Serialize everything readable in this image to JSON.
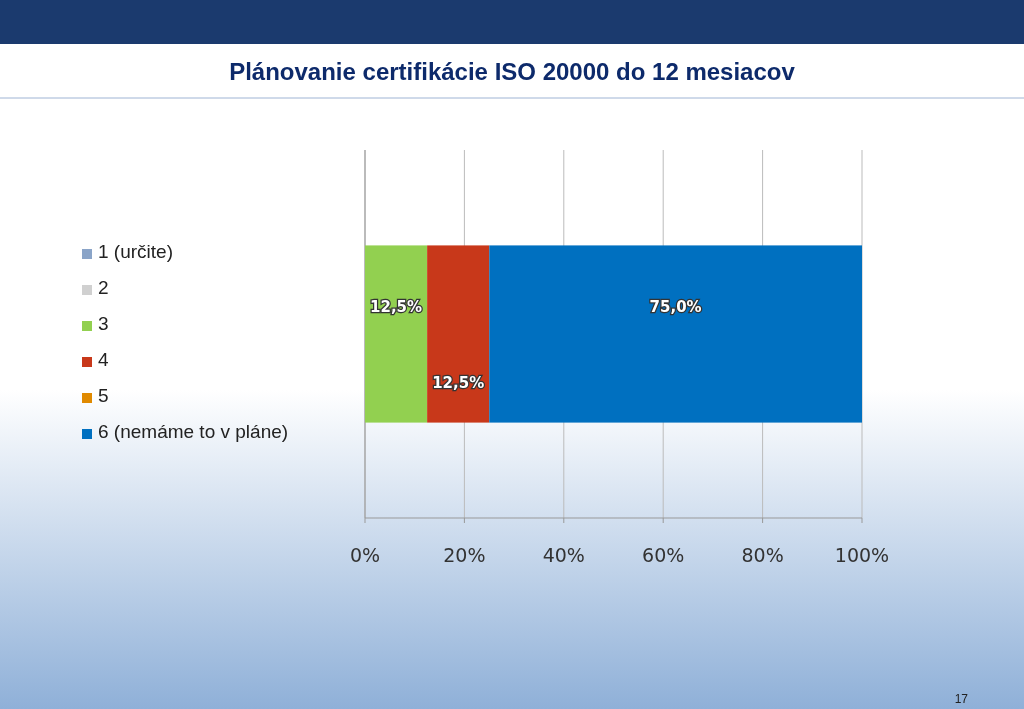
{
  "chart_data": {
    "type": "bar",
    "title": "Plánovanie certifikácie ISO 20000 do 12 mesiacov",
    "orientation": "horizontal",
    "stacked": true,
    "categories": [
      null
    ],
    "series": [
      {
        "name": "1 (určite)",
        "color": "#8aa4c8",
        "values": [
          0
        ],
        "value_labels": [
          null
        ]
      },
      {
        "name": "2",
        "color": "#d0d0d0",
        "values": [
          0
        ],
        "value_labels": [
          null
        ]
      },
      {
        "name": "3",
        "color": "#92d050",
        "values": [
          12.5
        ],
        "value_labels": [
          "12,5%"
        ]
      },
      {
        "name": "4",
        "color": "#c8381a",
        "values": [
          12.5
        ],
        "value_labels": [
          "12,5%"
        ]
      },
      {
        "name": "5",
        "color": "#e08a00",
        "values": [
          0
        ],
        "value_labels": [
          null
        ]
      },
      {
        "name": "6 (nemáme to v pláne)",
        "color": "#0070c0",
        "values": [
          75
        ],
        "value_labels": [
          "75,0%"
        ]
      }
    ],
    "xlim": [
      0,
      100
    ],
    "xticks": [
      {
        "value": 0,
        "label": "0%"
      },
      {
        "value": 20,
        "label": "20%"
      },
      {
        "value": 40,
        "label": "40%"
      },
      {
        "value": 60,
        "label": "60%"
      },
      {
        "value": 80,
        "label": "80%"
      },
      {
        "value": 100,
        "label": "100%"
      }
    ],
    "grid": "x",
    "legend": "left",
    "annotations": [
      "17"
    ]
  }
}
